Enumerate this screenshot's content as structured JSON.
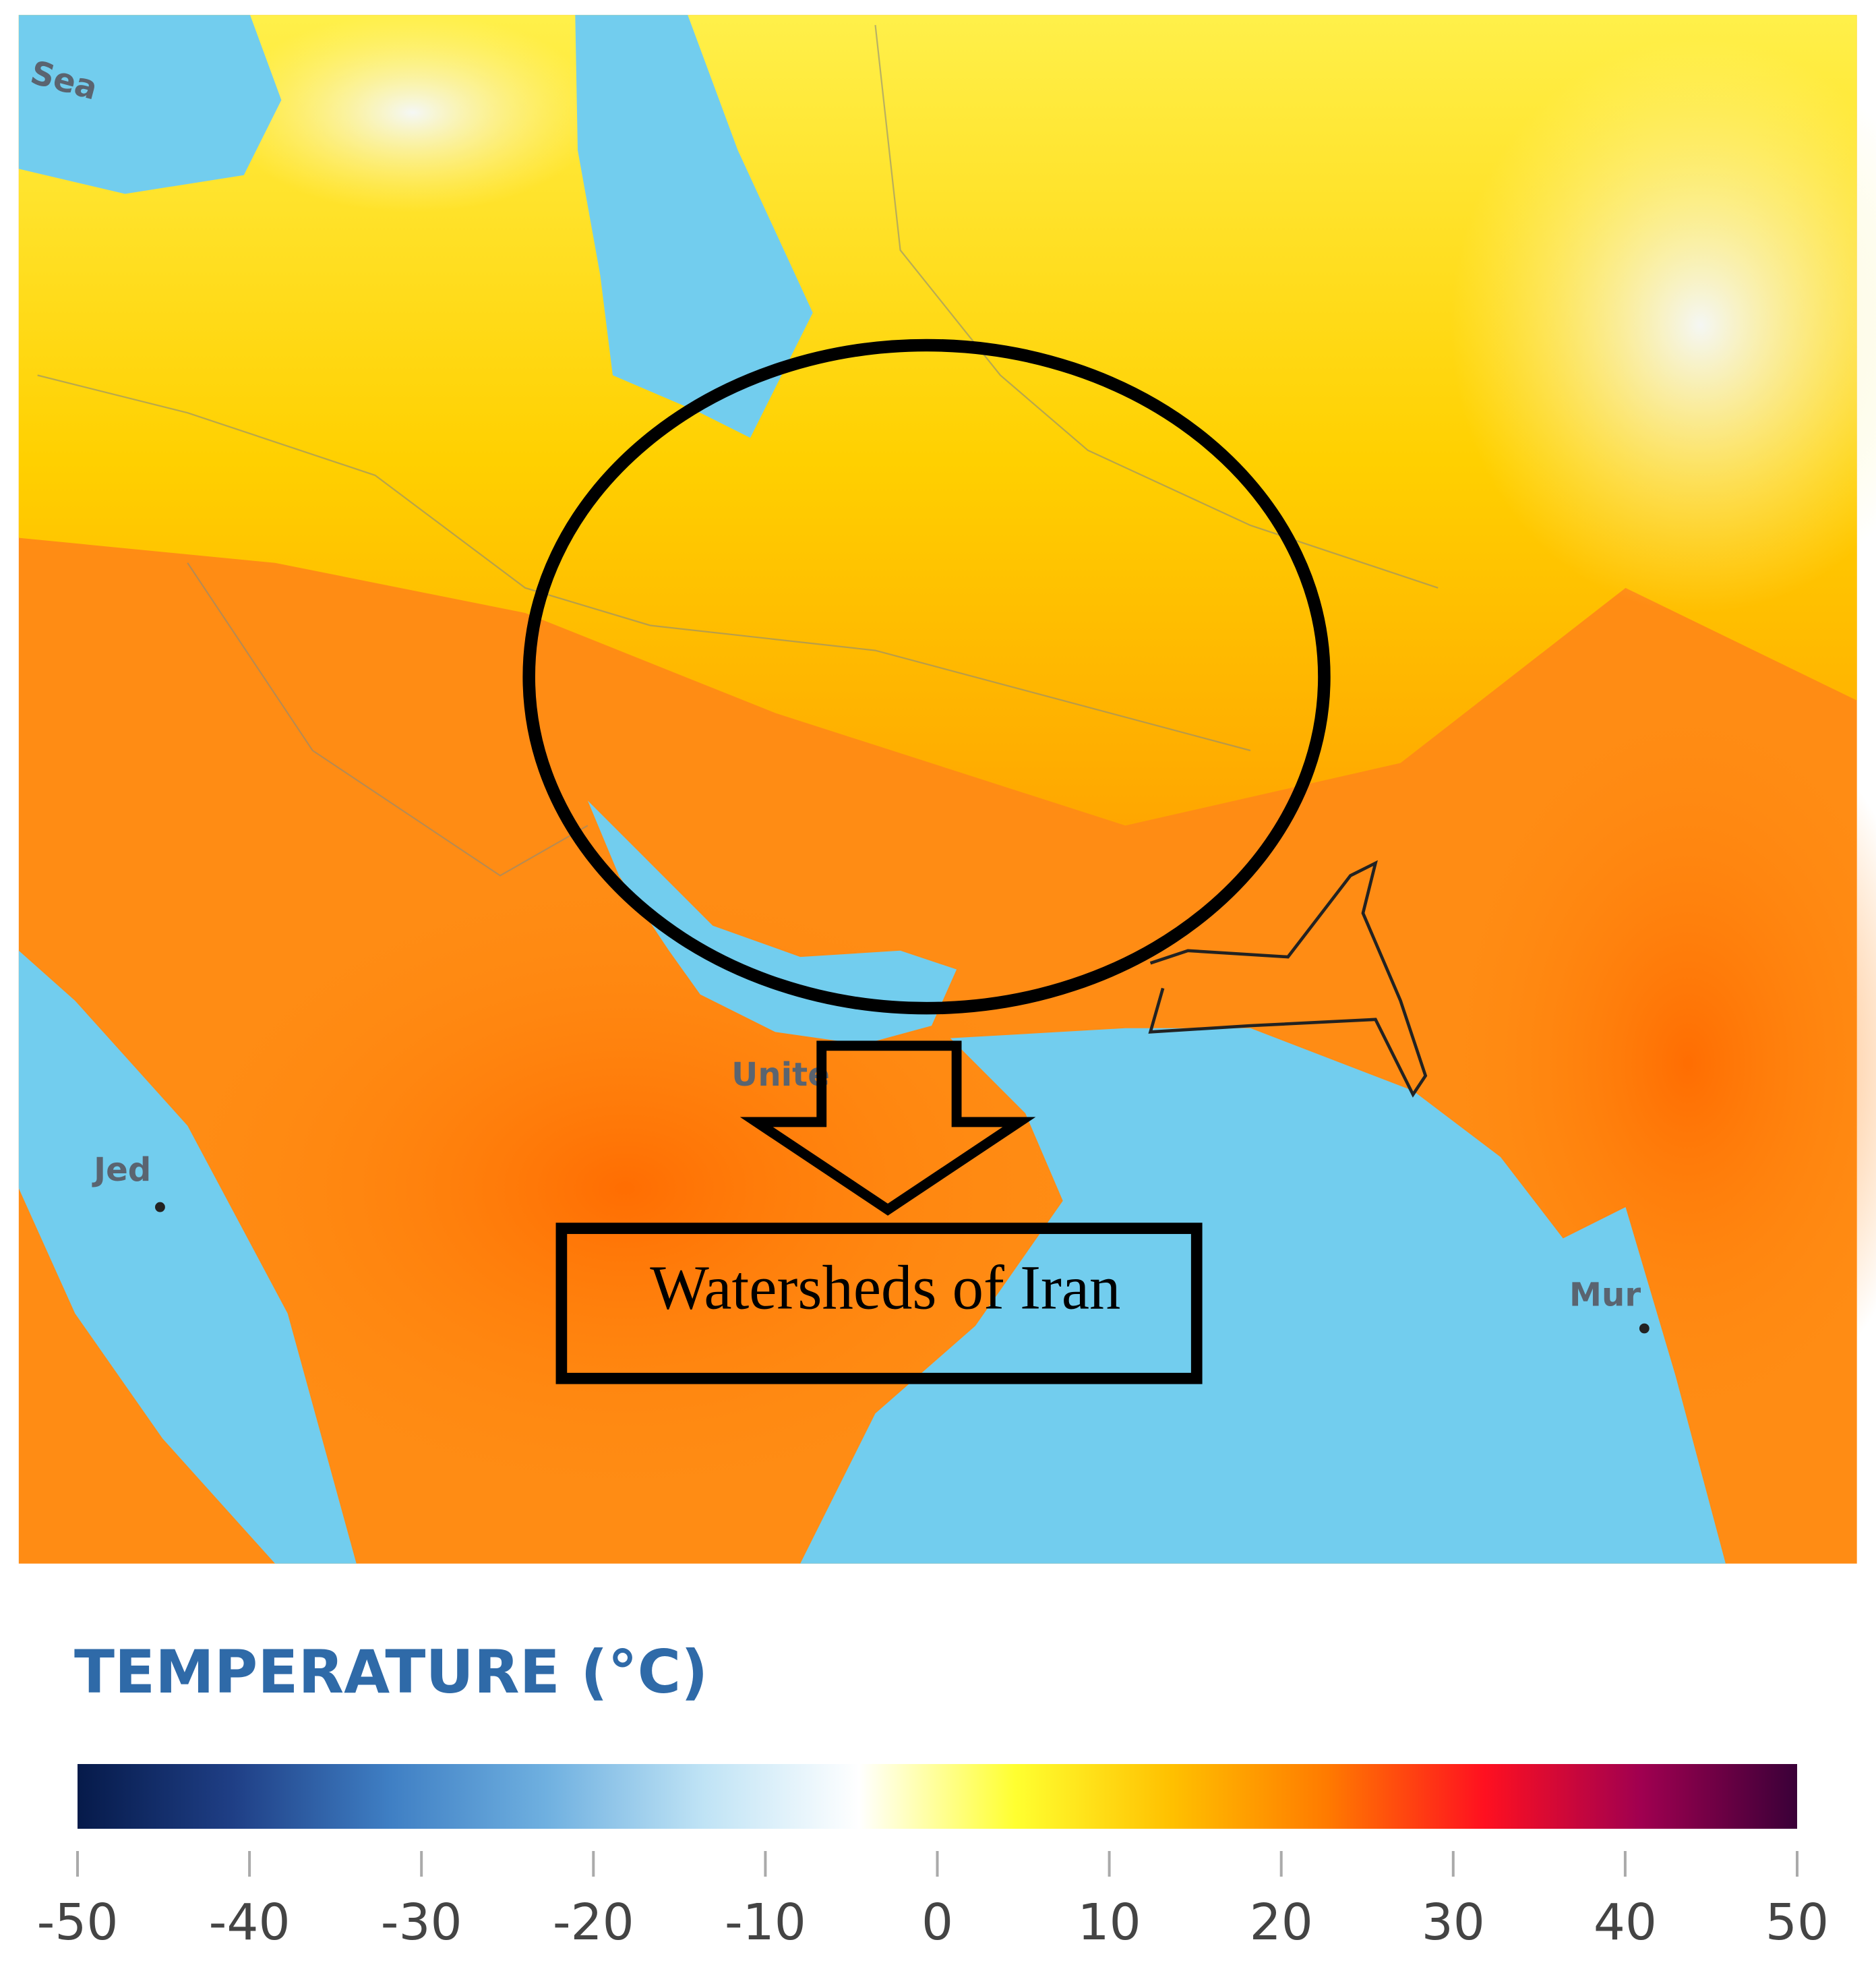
{
  "map": {
    "labels": [
      "Sea",
      "Unite",
      "Jed",
      "Mur"
    ]
  },
  "annotation": "Watersheds of Iran",
  "legend": {
    "title": "TEMPERATURE (°C)",
    "ticks": [
      -50,
      -40,
      -30,
      -20,
      -10,
      0,
      10,
      20,
      30,
      40,
      50
    ],
    "colors": [
      "#061a4a",
      "#1f3f86",
      "#3f7fc4",
      "#6fb0e0",
      "#bfe3f5",
      "#ffffff",
      "#ffff30",
      "#ffc000",
      "#ff7a00",
      "#ff1020",
      "#a00050",
      "#3a0038"
    ]
  }
}
